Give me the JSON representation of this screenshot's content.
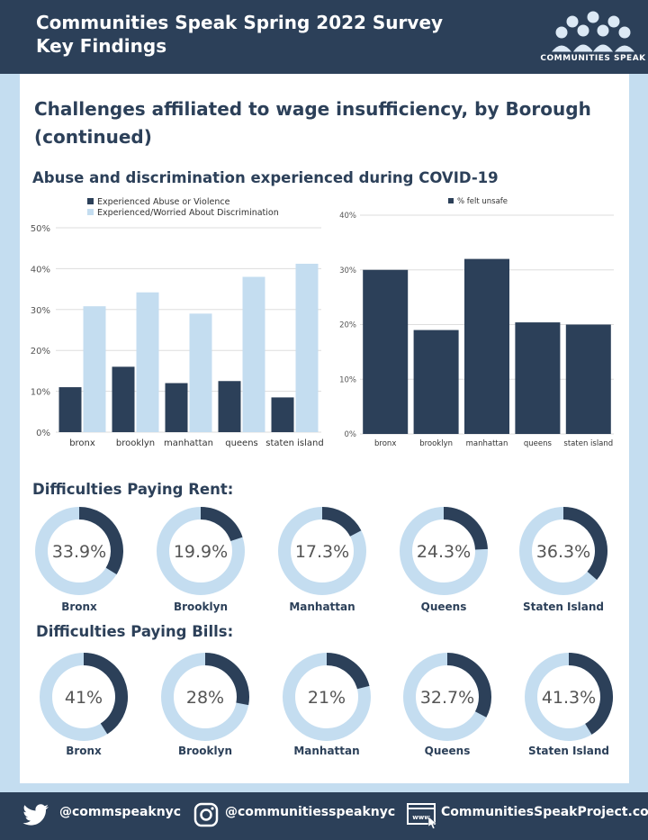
{
  "header": {
    "title_line1": "Communities Speak Spring 2022 Survey",
    "title_line2": "Key Findings",
    "logo_text": "COMMUNITIES SPEAK"
  },
  "main_title_line1": "Challenges affiliated to wage insufficiency, by Borough",
  "main_title_line2": "(continued)",
  "sections": {
    "abuse": "Abuse and discrimination experienced during COVID-19",
    "rent": "Difficulties Paying Rent:",
    "bills": "Difficulties Paying Bills:"
  },
  "chart_data": [
    {
      "type": "bar",
      "categories": [
        "bronx",
        "brooklyn",
        "manhattan",
        "queens",
        "staten island"
      ],
      "series": [
        {
          "name": "Experienced Abuse or Violence",
          "values": [
            11,
            16,
            12,
            12.5,
            8.5
          ],
          "color": "#2c4059"
        },
        {
          "name": "Experienced/Worried About Discrimination",
          "values": [
            30.8,
            34.2,
            29,
            38,
            41.2
          ],
          "color": "#c4ddf0"
        }
      ],
      "ylim": [
        0,
        50
      ],
      "yticks": [
        "0%",
        "10%",
        "20%",
        "30%",
        "40%",
        "50%"
      ],
      "legend": "top-left",
      "grid": true
    },
    {
      "type": "bar",
      "categories": [
        "bronx",
        "brooklyn",
        "manhattan",
        "queens",
        "staten island"
      ],
      "series": [
        {
          "name": "%  felt unsafe",
          "values": [
            30,
            19,
            32,
            20.4,
            20
          ],
          "color": "#2c4059"
        }
      ],
      "ylim": [
        0,
        40
      ],
      "yticks": [
        "0%",
        "10%",
        "20%",
        "30%",
        "40%"
      ],
      "legend": "top-center",
      "grid": true
    },
    {
      "type": "pie",
      "group": "rent",
      "categories": [
        "Bronx",
        "Brooklyn",
        "Manhattan",
        "Queens",
        "Staten Island"
      ],
      "values": [
        33.9,
        19.9,
        17.3,
        24.3,
        36.3
      ],
      "labels": [
        "33.9%",
        "19.9%",
        "17.3%",
        "24.3%",
        "36.3%"
      ]
    },
    {
      "type": "pie",
      "group": "bills",
      "categories": [
        "Bronx",
        "Brooklyn",
        "Manhattan",
        "Queens",
        "Staten Island"
      ],
      "values": [
        41,
        28,
        21,
        32.7,
        41.3
      ],
      "labels": [
        "41%",
        "28%",
        "21%",
        "32.7%",
        "41.3%"
      ]
    }
  ],
  "colors": {
    "dark": "#2c4059",
    "light": "#c4ddf0",
    "grid": "#dddddd",
    "tick": "#555555"
  },
  "footer": {
    "twitter": "@commspeaknyc",
    "instagram": "@communitiesspeaknyc",
    "website": "CommunitiesSpeakProject.com",
    "www": "www"
  }
}
